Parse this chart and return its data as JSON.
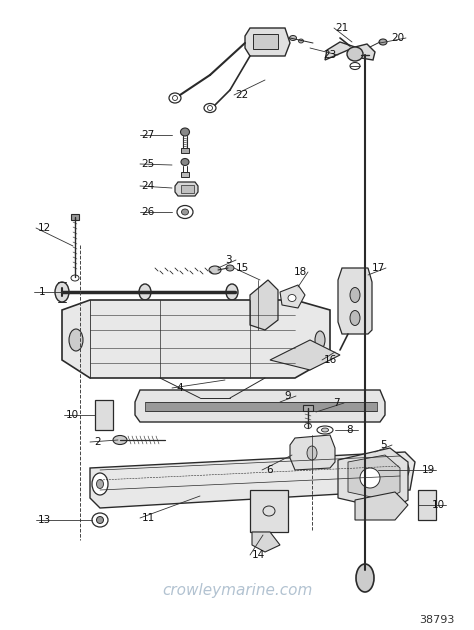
{
  "background_color": "#ffffff",
  "watermark_text": "crowleymarine.com",
  "watermark_color": "#aabccc",
  "watermark_fontsize": 11,
  "part_number_text": "38793",
  "part_number_color": "#333333",
  "part_number_fontsize": 8,
  "label_color": "#111111",
  "label_fontsize": 7.5,
  "draw_color": "#2a2a2a",
  "fig_width": 4.74,
  "fig_height": 6.3,
  "dpi": 100
}
